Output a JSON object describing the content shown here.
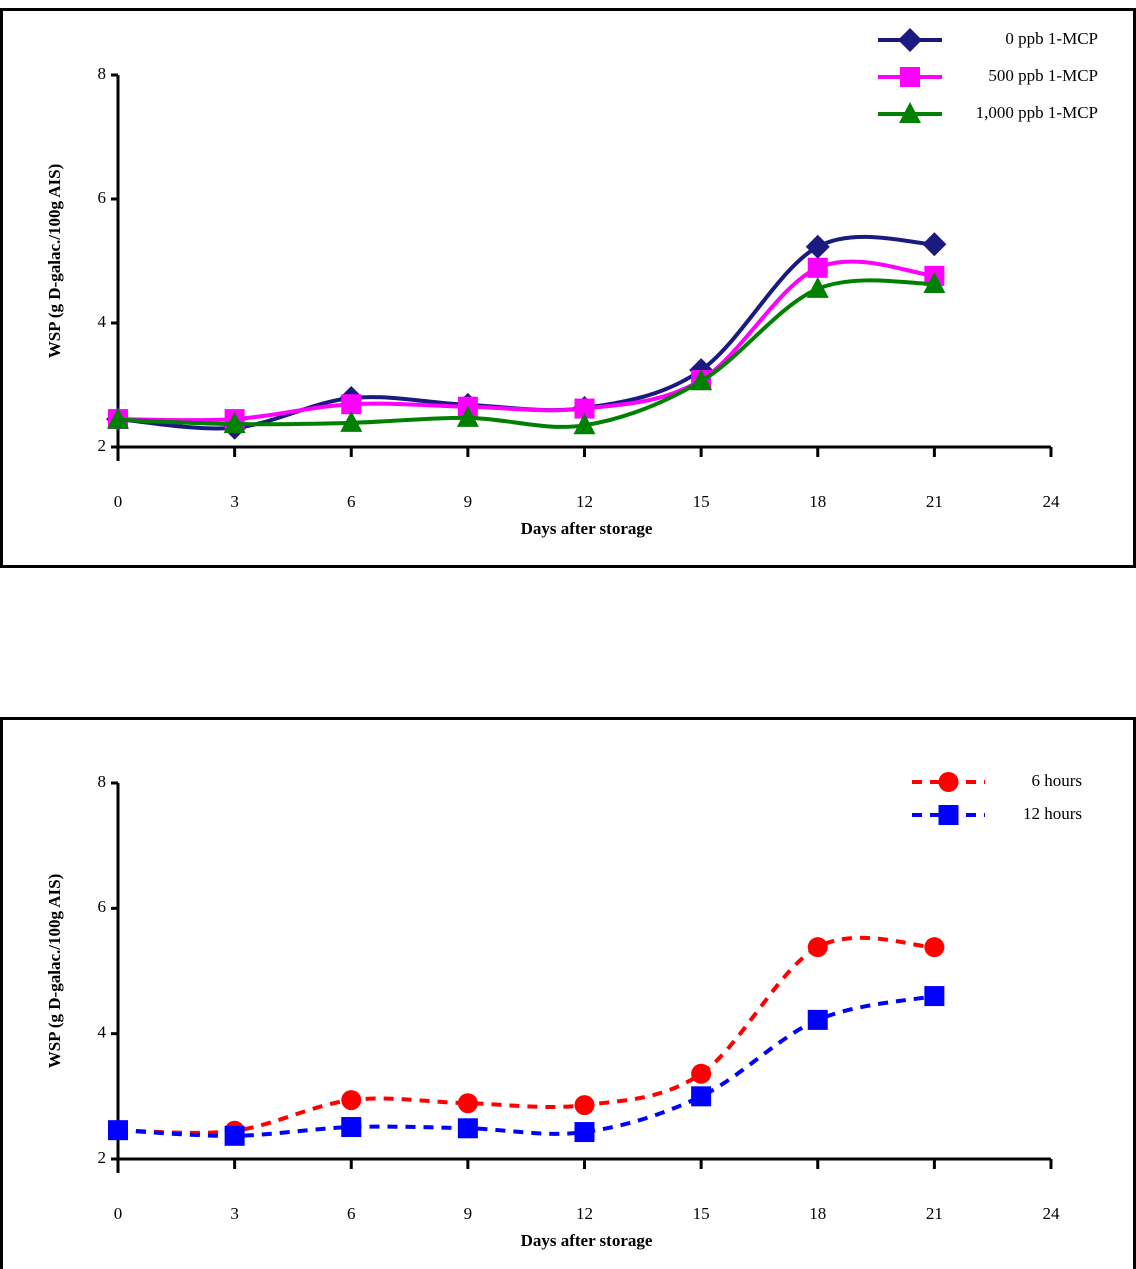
{
  "chart_data": [
    {
      "type": "line",
      "xlabel": "Days after storage",
      "ylabel": "WSP (g D-galac./100g AIS)",
      "x": [
        0,
        3,
        6,
        9,
        12,
        15,
        18,
        21
      ],
      "xlim": [
        0,
        24
      ],
      "xticks": [
        0,
        3,
        6,
        9,
        12,
        15,
        18,
        21,
        24
      ],
      "ylim": [
        2,
        8
      ],
      "yticks": [
        2,
        4,
        6,
        8
      ],
      "legend": "upper right",
      "series": [
        {
          "name": "0 ppb 1-MCP",
          "color": "#1a1a80",
          "marker": "diamond",
          "dash": false,
          "values": [
            2.45,
            2.31,
            2.79,
            2.68,
            2.63,
            3.24,
            5.23,
            5.27
          ]
        },
        {
          "name": "500 ppb 1-MCP",
          "color": "#ff00ff",
          "marker": "square",
          "dash": false,
          "values": [
            2.45,
            2.45,
            2.69,
            2.65,
            2.62,
            3.08,
            4.89,
            4.76
          ]
        },
        {
          "name": "1,000 ppb 1-MCP",
          "color": "#008000",
          "marker": "triangle",
          "dash": false,
          "values": [
            2.44,
            2.37,
            2.39,
            2.47,
            2.35,
            3.06,
            4.55,
            4.63
          ]
        }
      ]
    },
    {
      "type": "line",
      "xlabel": "Days after storage",
      "ylabel": "WSP (g D-galac./100g AIS)",
      "x": [
        0,
        3,
        6,
        9,
        12,
        15,
        18,
        21
      ],
      "xlim": [
        0,
        24
      ],
      "xticks": [
        0,
        3,
        6,
        9,
        12,
        15,
        18,
        21,
        24
      ],
      "ylim": [
        2,
        8
      ],
      "yticks": [
        2,
        4,
        6,
        8
      ],
      "legend": "upper right",
      "series": [
        {
          "name": "6 hours",
          "color": "#ff0000",
          "marker": "circle",
          "dash": true,
          "values": [
            2.46,
            2.45,
            2.94,
            2.89,
            2.86,
            3.36,
            5.38,
            5.38
          ]
        },
        {
          "name": "12 hours",
          "color": "#0000ff",
          "marker": "square",
          "dash": true,
          "values": [
            2.46,
            2.37,
            2.51,
            2.49,
            2.43,
            3.0,
            4.22,
            4.6
          ]
        }
      ]
    }
  ]
}
